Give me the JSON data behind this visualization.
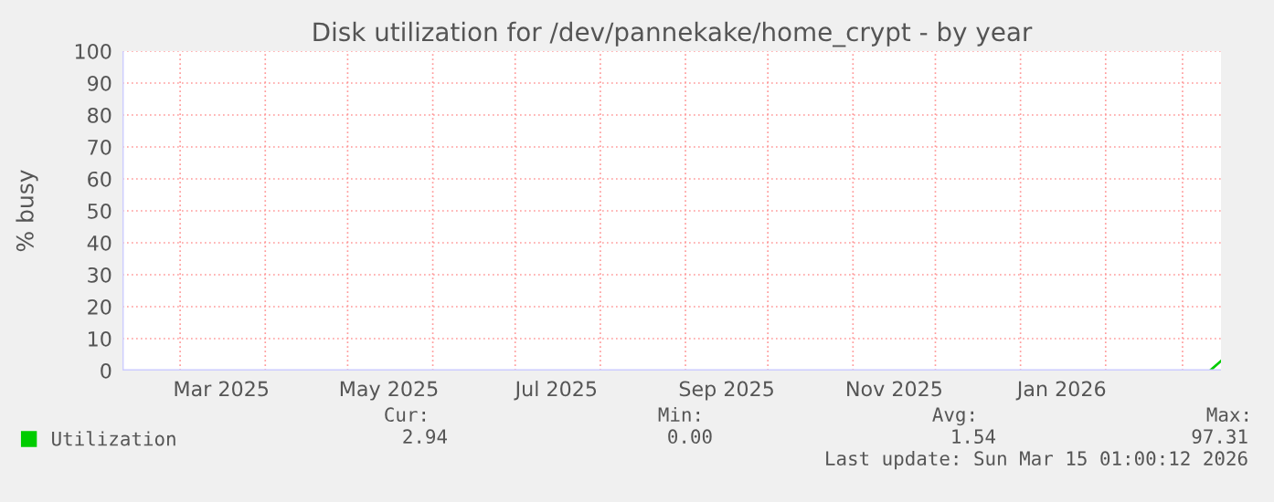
{
  "chart_data": {
    "type": "line",
    "title": "Disk utilization for /dev/pannekake/home_crypt - by year",
    "ylabel": "% busy",
    "x": [
      "2026-03-11",
      "2026-03-15"
    ],
    "series": [
      {
        "name": "Utilization",
        "color": "#00cc00",
        "values": [
          0,
          3
        ]
      }
    ],
    "xlim": [
      "2025-02-08",
      "2026-03-15"
    ],
    "xticks": [
      {
        "value": "2025-03-01",
        "label": null
      },
      {
        "value": "2025-03-16",
        "label": "Mar 2025"
      },
      {
        "value": "2025-04-01",
        "label": null
      },
      {
        "value": "2025-05-01",
        "label": null
      },
      {
        "value": "2025-05-16",
        "label": "May 2025"
      },
      {
        "value": "2025-06-01",
        "label": null
      },
      {
        "value": "2025-07-01",
        "label": null
      },
      {
        "value": "2025-07-16",
        "label": "Jul 2025"
      },
      {
        "value": "2025-08-01",
        "label": null
      },
      {
        "value": "2025-09-01",
        "label": null
      },
      {
        "value": "2025-09-16",
        "label": "Sep 2025"
      },
      {
        "value": "2025-10-01",
        "label": null
      },
      {
        "value": "2025-11-01",
        "label": null
      },
      {
        "value": "2025-11-16",
        "label": "Nov 2025"
      },
      {
        "value": "2025-12-01",
        "label": null
      },
      {
        "value": "2026-01-01",
        "label": null
      },
      {
        "value": "2026-01-16",
        "label": "Jan 2026"
      },
      {
        "value": "2026-02-01",
        "label": null
      },
      {
        "value": "2026-03-01",
        "label": null
      }
    ],
    "ylim": [
      0,
      100
    ],
    "yticks": [
      0,
      10,
      20,
      30,
      40,
      50,
      60,
      70,
      80,
      90,
      100
    ],
    "grid": true,
    "legend": "bottom left",
    "marker": "none",
    "line_style": "solid",
    "annotations": [
      "Cur:",
      "Min:",
      "Avg:",
      "Max:",
      "2.94",
      "0.00",
      "1.54",
      "97.31",
      "Last update: Sun Mar 15 01:00:12 2026"
    ]
  }
}
